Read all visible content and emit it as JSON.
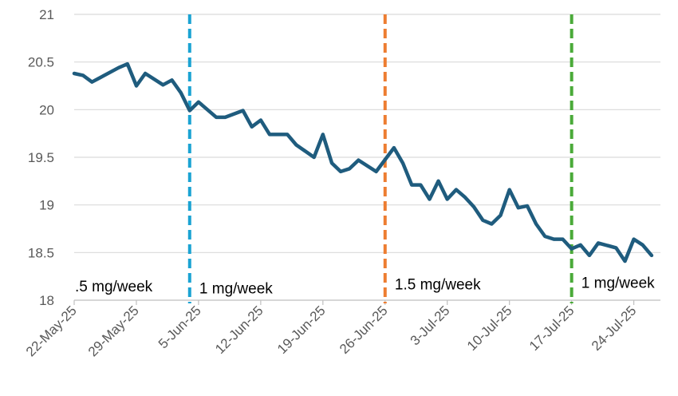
{
  "chart_data": {
    "type": "line",
    "title": "",
    "xlabel": "",
    "ylabel": "",
    "ylim": [
      18,
      21
    ],
    "y_ticks": [
      18,
      18.5,
      19,
      19.5,
      20,
      20.5,
      21
    ],
    "y_tick_labels": [
      "18",
      "18.5",
      "19",
      "19.5",
      "20",
      "20.5",
      "21"
    ],
    "x_range": [
      "2025-05-22",
      "2025-07-27"
    ],
    "x_ticks": [
      "2025-05-22",
      "2025-05-29",
      "2025-06-05",
      "2025-06-12",
      "2025-06-19",
      "2025-06-26",
      "2025-07-03",
      "2025-07-10",
      "2025-07-17",
      "2025-07-24"
    ],
    "x_tick_labels": [
      "22-May-25",
      "29-May-25",
      "5-Jun-25",
      "12-Jun-25",
      "19-Jun-25",
      "26-Jun-25",
      "3-Jul-25",
      "10-Jul-25",
      "17-Jul-25",
      "24-Jul-25"
    ],
    "grid": "horizontal",
    "legend": "none",
    "series": [
      {
        "color": "#1F5C7E",
        "points": [
          [
            "2025-05-22",
            20.38
          ],
          [
            "2025-05-23",
            20.36
          ],
          [
            "2025-05-24",
            20.29
          ],
          [
            "2025-05-27",
            20.44
          ],
          [
            "2025-05-28",
            20.48
          ],
          [
            "2025-05-29",
            20.25
          ],
          [
            "2025-05-30",
            20.38
          ],
          [
            "2025-06-01",
            20.26
          ],
          [
            "2025-06-02",
            20.31
          ],
          [
            "2025-06-03",
            20.18
          ],
          [
            "2025-06-04",
            19.99
          ],
          [
            "2025-06-05",
            20.08
          ],
          [
            "2025-06-07",
            19.92
          ],
          [
            "2025-06-08",
            19.92
          ],
          [
            "2025-06-10",
            19.99
          ],
          [
            "2025-06-11",
            19.82
          ],
          [
            "2025-06-12",
            19.89
          ],
          [
            "2025-06-13",
            19.74
          ],
          [
            "2025-06-15",
            19.74
          ],
          [
            "2025-06-16",
            19.63
          ],
          [
            "2025-06-18",
            19.5
          ],
          [
            "2025-06-19",
            19.74
          ],
          [
            "2025-06-20",
            19.44
          ],
          [
            "2025-06-21",
            19.35
          ],
          [
            "2025-06-22",
            19.38
          ],
          [
            "2025-06-23",
            19.47
          ],
          [
            "2025-06-25",
            19.35
          ],
          [
            "2025-06-27",
            19.6
          ],
          [
            "2025-06-28",
            19.44
          ],
          [
            "2025-06-29",
            19.21
          ],
          [
            "2025-06-30",
            19.21
          ],
          [
            "2025-07-01",
            19.06
          ],
          [
            "2025-07-02",
            19.25
          ],
          [
            "2025-07-03",
            19.06
          ],
          [
            "2025-07-04",
            19.16
          ],
          [
            "2025-07-05",
            19.08
          ],
          [
            "2025-07-06",
            18.98
          ],
          [
            "2025-07-07",
            18.84
          ],
          [
            "2025-07-08",
            18.8
          ],
          [
            "2025-07-09",
            18.89
          ],
          [
            "2025-07-10",
            19.16
          ],
          [
            "2025-07-11",
            18.97
          ],
          [
            "2025-07-12",
            18.99
          ],
          [
            "2025-07-13",
            18.8
          ],
          [
            "2025-07-14",
            18.67
          ],
          [
            "2025-07-15",
            18.64
          ],
          [
            "2025-07-16",
            18.64
          ],
          [
            "2025-07-17",
            18.54
          ],
          [
            "2025-07-18",
            18.58
          ],
          [
            "2025-07-19",
            18.47
          ],
          [
            "2025-07-20",
            18.6
          ],
          [
            "2025-07-22",
            18.55
          ],
          [
            "2025-07-23",
            18.41
          ],
          [
            "2025-07-24",
            18.64
          ],
          [
            "2025-07-25",
            18.58
          ],
          [
            "2025-07-26",
            18.47
          ]
        ]
      }
    ],
    "vertical_lines": [
      {
        "date": "2025-06-04",
        "color": "#1BA3D3"
      },
      {
        "date": "2025-06-26",
        "color": "#ED7D31"
      },
      {
        "date": "2025-07-17",
        "color": "#4AAA39"
      }
    ],
    "annotations": [
      {
        "text": ".5 mg/week",
        "x": "2025-05-22",
        "y": 18.15
      },
      {
        "text": "1 mg/week",
        "x": "2025-06-05",
        "y": 18.13
      },
      {
        "text": "1.5 mg/week",
        "x": "2025-06-27",
        "y": 18.17
      },
      {
        "text": "1 mg/week",
        "x": "2025-07-18",
        "y": 18.19
      }
    ]
  }
}
